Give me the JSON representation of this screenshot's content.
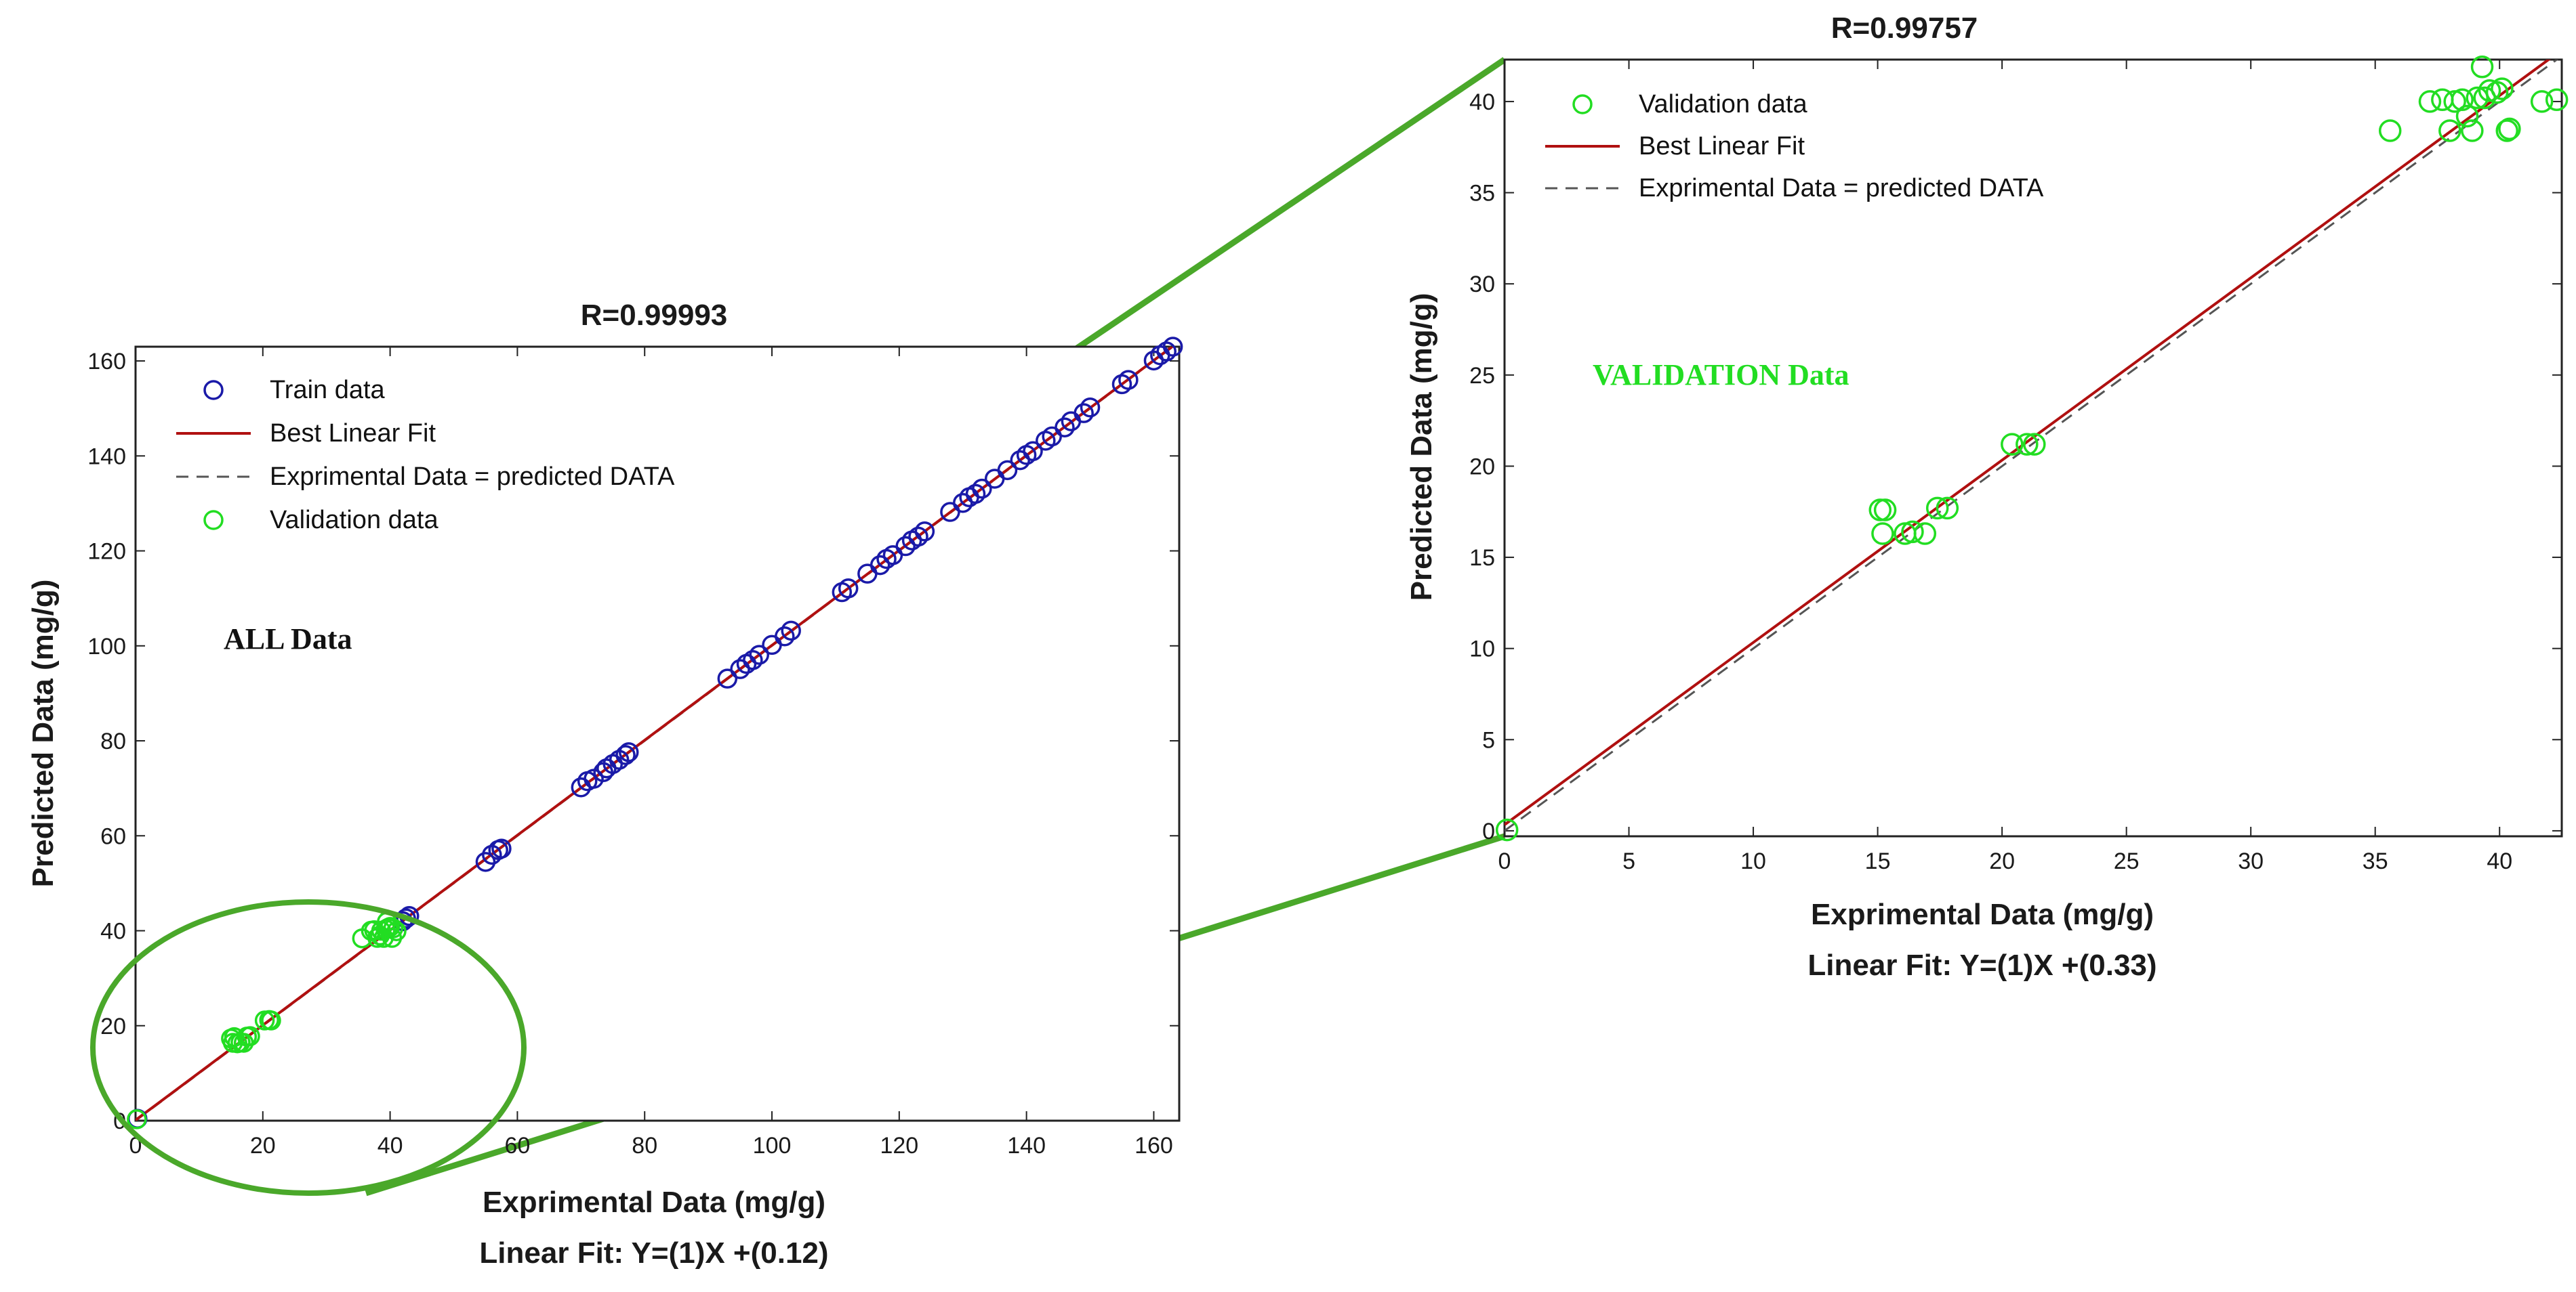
{
  "colors": {
    "train": "#1a1aa8",
    "validation": "#22dd22",
    "fit": "#b01010",
    "ideal": "#555555",
    "connector": "#4aa82a"
  },
  "chart_data": [
    {
      "type": "scatter",
      "id": "all",
      "title": "R=0.99993",
      "xlabel": "Exprimental Data (mg/g)",
      "ylabel": "Predicted Data (mg/g)",
      "subcaption": "Linear Fit: Y=(1)X +(0.12)",
      "annotation": "ALL Data",
      "xlim": [
        0,
        164
      ],
      "ylim": [
        0,
        163
      ],
      "xticks": [
        0,
        20,
        40,
        60,
        80,
        100,
        120,
        140,
        160
      ],
      "yticks": [
        0,
        20,
        40,
        60,
        80,
        100,
        120,
        140,
        160
      ],
      "grid": false,
      "legend_placement": "top-left",
      "legend": [
        {
          "label": "Train data",
          "kind": "marker",
          "series": "train"
        },
        {
          "label": "Best Linear Fit",
          "kind": "line",
          "series": "fit"
        },
        {
          "label": "Exprimental Data = predicted DATA",
          "kind": "dashed",
          "series": "ideal"
        },
        {
          "label": "Validation data",
          "kind": "marker",
          "series": "validation"
        }
      ],
      "fit": {
        "slope": 1,
        "intercept": 0.12
      },
      "series": [
        {
          "name": "Train data",
          "key": "train",
          "points": [
            [
              0.3,
              0.4
            ],
            [
              42,
              42
            ],
            [
              42.5,
              42.6
            ],
            [
              43,
              43.1
            ],
            [
              55,
              54.5
            ],
            [
              56,
              56
            ],
            [
              57,
              57
            ],
            [
              57.5,
              57.3
            ],
            [
              70,
              70.2
            ],
            [
              71,
              71.5
            ],
            [
              72,
              72
            ],
            [
              73.5,
              73.4
            ],
            [
              74,
              74.2
            ],
            [
              75,
              75.1
            ],
            [
              76,
              76
            ],
            [
              77,
              77
            ],
            [
              77.5,
              77.6
            ],
            [
              93,
              93.1
            ],
            [
              95,
              95.1
            ],
            [
              96,
              96.2
            ],
            [
              97,
              97
            ],
            [
              98,
              98.1
            ],
            [
              100,
              100.2
            ],
            [
              102,
              102
            ],
            [
              103,
              103.2
            ],
            [
              111,
              111.3
            ],
            [
              112,
              112.1
            ],
            [
              115,
              115.2
            ],
            [
              117,
              117
            ],
            [
              118,
              118.3
            ],
            [
              119,
              119.1
            ],
            [
              121,
              121
            ],
            [
              122,
              122.2
            ],
            [
              123,
              123
            ],
            [
              124,
              124.1
            ],
            [
              128,
              128.2
            ],
            [
              130,
              130.1
            ],
            [
              131,
              131.3
            ],
            [
              132,
              132
            ],
            [
              133,
              133.1
            ],
            [
              135,
              135.2
            ],
            [
              137,
              137
            ],
            [
              139,
              139.1
            ],
            [
              140,
              140.2
            ],
            [
              141,
              141
            ],
            [
              143,
              143.2
            ],
            [
              144,
              144.1
            ],
            [
              146,
              146
            ],
            [
              147,
              147.3
            ],
            [
              149,
              149
            ],
            [
              150,
              150.2
            ],
            [
              155,
              155.1
            ],
            [
              156,
              156
            ],
            [
              160,
              160.1
            ],
            [
              161,
              161.2
            ],
            [
              162,
              162
            ],
            [
              163,
              163
            ]
          ]
        },
        {
          "name": "Validation data",
          "key": "validation",
          "points": [
            [
              0.2,
              0.3
            ],
            [
              15,
              17.3
            ],
            [
              15.3,
              16.4
            ],
            [
              15.5,
              17.6
            ],
            [
              16,
              16.3
            ],
            [
              16.5,
              16.5
            ],
            [
              17,
              16.4
            ],
            [
              17.5,
              17.7
            ],
            [
              18,
              17.8
            ],
            [
              20.3,
              21.1
            ],
            [
              21,
              21.2
            ],
            [
              21.3,
              21.1
            ],
            [
              35.6,
              38.4
            ],
            [
              37,
              40
            ],
            [
              37.5,
              40.1
            ],
            [
              38,
              38.5
            ],
            [
              38.4,
              39
            ],
            [
              38.6,
              40
            ],
            [
              39,
              38.5
            ],
            [
              39.3,
              40.3
            ],
            [
              39.5,
              41.9
            ],
            [
              39.7,
              40.6
            ],
            [
              40,
              40.8
            ],
            [
              40.3,
              38.5
            ],
            [
              40.5,
              40.5
            ],
            [
              41,
              39.9
            ]
          ]
        }
      ]
    },
    {
      "type": "scatter",
      "id": "validation",
      "title": "R=0.99757",
      "xlabel": "Exprimental Data (mg/g)",
      "ylabel": "Predicted Data (mg/g)",
      "subcaption": "Linear Fit: Y=(1)X +(0.33)",
      "annotation": "VALIDATION Data",
      "xlim": [
        0,
        42.5
      ],
      "ylim": [
        -0.3,
        42.3
      ],
      "xticks": [
        0,
        5,
        10,
        15,
        20,
        25,
        30,
        35,
        40
      ],
      "yticks": [
        0,
        5,
        10,
        15,
        20,
        25,
        30,
        35,
        40
      ],
      "grid": false,
      "legend_placement": "top-left",
      "legend": [
        {
          "label": "Validation data",
          "kind": "marker",
          "series": "validation"
        },
        {
          "label": "Best Linear Fit",
          "kind": "line",
          "series": "fit"
        },
        {
          "label": "Exprimental Data = predicted DATA",
          "kind": "dashed",
          "series": "ideal"
        }
      ],
      "fit": {
        "slope": 1,
        "intercept": 0.33
      },
      "series": [
        {
          "name": "Validation data",
          "key": "validation",
          "points": [
            [
              0.1,
              0.05
            ],
            [
              15.1,
              17.6
            ],
            [
              15.2,
              16.3
            ],
            [
              15.3,
              17.6
            ],
            [
              16.1,
              16.3
            ],
            [
              16.4,
              16.4
            ],
            [
              16.9,
              16.3
            ],
            [
              17.4,
              17.7
            ],
            [
              17.8,
              17.7
            ],
            [
              20.4,
              21.2
            ],
            [
              21,
              21.2
            ],
            [
              21.3,
              21.2
            ],
            [
              35.6,
              38.4
            ],
            [
              37.2,
              40
            ],
            [
              37.7,
              40.1
            ],
            [
              38,
              38.4
            ],
            [
              38.2,
              40
            ],
            [
              38.5,
              40.1
            ],
            [
              38.7,
              39.2
            ],
            [
              38.9,
              38.4
            ],
            [
              39.1,
              40.2
            ],
            [
              39.3,
              41.9
            ],
            [
              39.4,
              40.2
            ],
            [
              39.6,
              40.6
            ],
            [
              39.9,
              40.5
            ],
            [
              40.1,
              40.7
            ],
            [
              40.3,
              38.4
            ],
            [
              40.4,
              38.5
            ],
            [
              41.7,
              40
            ],
            [
              42.3,
              40.1
            ]
          ]
        }
      ]
    }
  ]
}
